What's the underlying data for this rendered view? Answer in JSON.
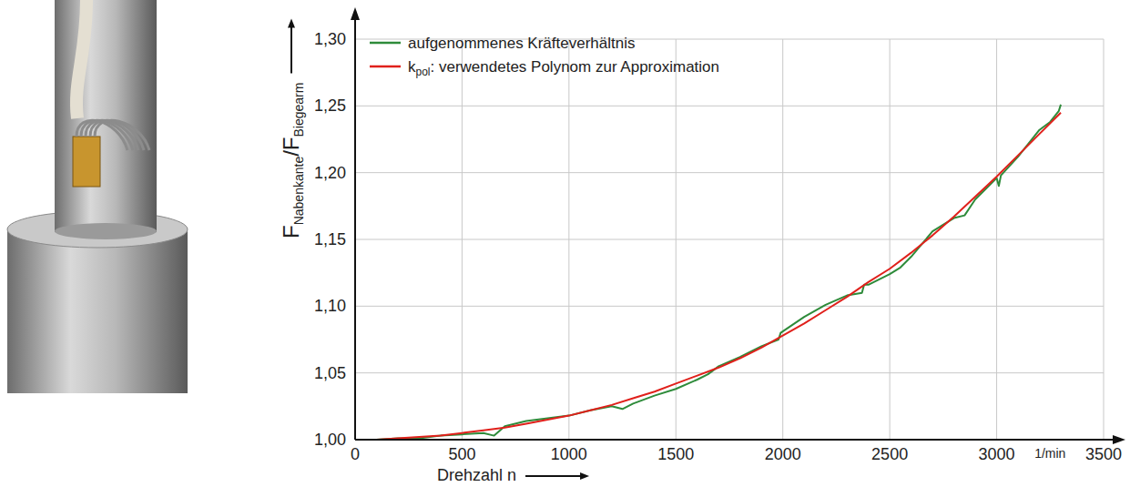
{
  "chart_data": {
    "type": "line",
    "xlabel": "Drehzahl n",
    "x_unit": "1/min",
    "ylabel": [
      "F",
      "Nabenkante",
      "/F",
      "Biegearm"
    ],
    "xlim": [
      0,
      3500
    ],
    "ylim": [
      1.0,
      1.3
    ],
    "xticks": [
      0,
      500,
      1000,
      1500,
      2000,
      2500,
      3000,
      3500
    ],
    "yticks": [
      {
        "value": 1.0,
        "label": "1,00"
      },
      {
        "value": 1.05,
        "label": "1,05"
      },
      {
        "value": 1.1,
        "label": "1,10"
      },
      {
        "value": 1.15,
        "label": "1,15"
      },
      {
        "value": 1.2,
        "label": "1,20"
      },
      {
        "value": 1.25,
        "label": "1,25"
      },
      {
        "value": 1.3,
        "label": "1,30"
      }
    ],
    "grid": true,
    "legend": "upper left",
    "series": [
      {
        "name": "aufgenommenes Kräfteverhältnis",
        "color": "#2e8b3a",
        "line_style": "solid",
        "x": [
          100,
          200,
          300,
          400,
          500,
          600,
          650,
          700,
          800,
          900,
          1000,
          1100,
          1200,
          1250,
          1300,
          1400,
          1500,
          1600,
          1650,
          1700,
          1800,
          1900,
          1980,
          1990,
          2100,
          2200,
          2300,
          2370,
          2380,
          2400,
          2500,
          2550,
          2600,
          2700,
          2800,
          2850,
          2900,
          3000,
          3010,
          3020,
          3100,
          3200,
          3250,
          3290,
          3300
        ],
        "values": [
          1.0,
          1.001,
          1.001,
          1.003,
          1.004,
          1.005,
          1.003,
          1.01,
          1.014,
          1.016,
          1.018,
          1.022,
          1.025,
          1.023,
          1.027,
          1.033,
          1.038,
          1.045,
          1.049,
          1.055,
          1.062,
          1.07,
          1.075,
          1.08,
          1.092,
          1.101,
          1.108,
          1.11,
          1.116,
          1.116,
          1.124,
          1.129,
          1.137,
          1.156,
          1.166,
          1.168,
          1.18,
          1.196,
          1.19,
          1.198,
          1.212,
          1.232,
          1.238,
          1.246,
          1.251
        ]
      },
      {
        "name": "kpol: verwendetes Polynom zur Approximation",
        "name_sub": "pol",
        "color": "#e0201b",
        "line_style": "solid",
        "x": [
          100,
          200,
          300,
          400,
          500,
          600,
          700,
          800,
          900,
          1000,
          1100,
          1200,
          1300,
          1400,
          1500,
          1600,
          1700,
          1800,
          1900,
          2000,
          2100,
          2200,
          2300,
          2400,
          2500,
          2600,
          2700,
          2800,
          2900,
          3000,
          3100,
          3200,
          3300
        ],
        "values": [
          1.0,
          1.001,
          1.002,
          1.003,
          1.005,
          1.007,
          1.009,
          1.012,
          1.015,
          1.018,
          1.022,
          1.026,
          1.031,
          1.036,
          1.042,
          1.048,
          1.054,
          1.061,
          1.069,
          1.078,
          1.087,
          1.097,
          1.107,
          1.118,
          1.128,
          1.14,
          1.153,
          1.167,
          1.182,
          1.197,
          1.213,
          1.229,
          1.245
        ]
      }
    ]
  }
}
